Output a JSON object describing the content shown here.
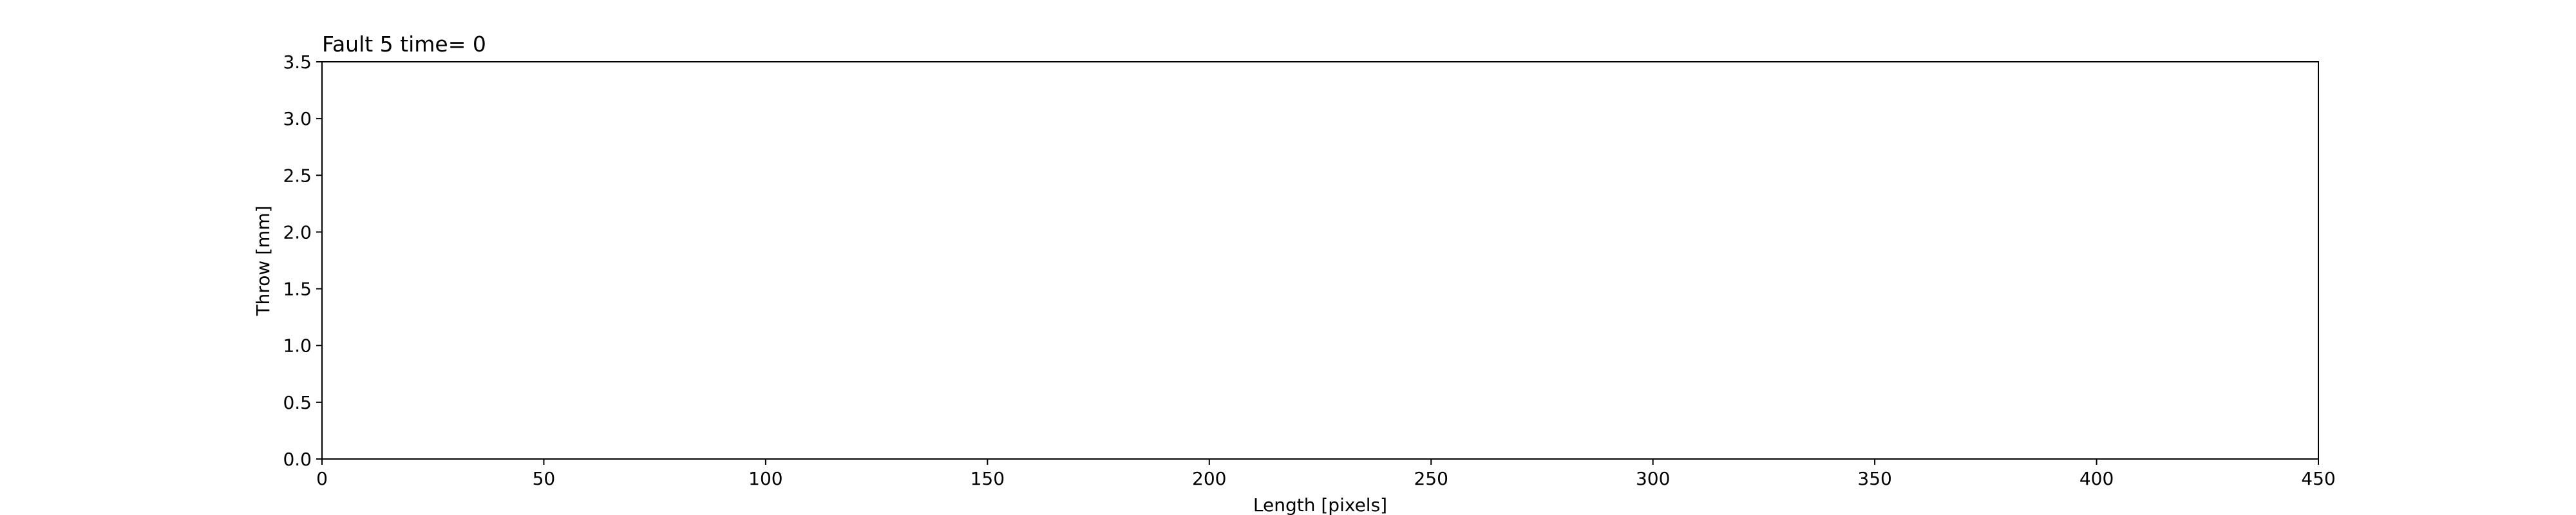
{
  "chart_data": {
    "type": "line",
    "title": "Fault 5 time= 0",
    "xlabel": "Length [pixels]",
    "ylabel": "Throw [mm]",
    "xlim": [
      0,
      450
    ],
    "ylim": [
      0,
      3.5
    ],
    "xticks": [
      "0",
      "50",
      "100",
      "150",
      "200",
      "250",
      "300",
      "350",
      "400",
      "450"
    ],
    "yticks": [
      "0.0",
      "0.5",
      "1.0",
      "1.5",
      "2.0",
      "2.5",
      "3.0",
      "3.5"
    ],
    "grid": false,
    "series": []
  }
}
